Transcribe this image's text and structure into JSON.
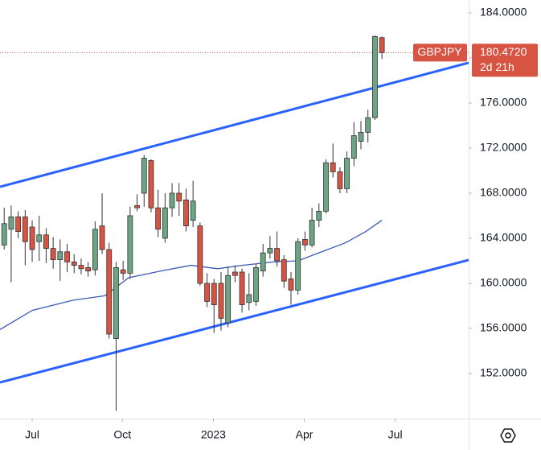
{
  "chart_data": {
    "type": "candlestick",
    "symbol": "GBPJPY",
    "countdown": "2d 21h",
    "last_price": {
      "value": 180.472,
      "label": "180.4720"
    },
    "up_color": "#6ba583",
    "down_color": "#d75442",
    "x": [
      0,
      1,
      2,
      3,
      4,
      5,
      6,
      7,
      8,
      9,
      10,
      11,
      12,
      13,
      14,
      15,
      16,
      17,
      18,
      19,
      20,
      21,
      22,
      23,
      24,
      25,
      26,
      27,
      28,
      29,
      30,
      31,
      32,
      33,
      34,
      35,
      36,
      37,
      38,
      39,
      40,
      41,
      42,
      43,
      44,
      45,
      46,
      47,
      48,
      49,
      50,
      51,
      52,
      53,
      54
    ],
    "open": [
      163.4,
      164.8,
      165.9,
      165.9,
      165.0,
      163.7,
      164.3,
      163.1,
      162.1,
      162.8,
      161.9,
      161.6,
      161.4,
      161.2,
      165.1,
      163.0,
      155.1,
      161.2,
      160.9,
      166.9,
      168.0,
      170.9,
      166.7,
      164.0,
      166.7,
      168.0,
      167.4,
      165.6,
      165.1,
      160.0,
      160.0,
      160.0,
      156.5,
      161.0,
      161.0,
      158.3,
      158.4,
      161.1,
      162.7,
      163.1,
      162.1,
      160.4,
      159.4,
      163.9,
      163.4,
      165.6,
      166.4,
      170.7,
      169.9,
      168.4,
      171.1,
      172.6,
      173.4,
      174.7,
      181.8
    ],
    "high": [
      166.7,
      166.9,
      166.4,
      166.5,
      165.6,
      166.0,
      164.9,
      164.1,
      163.9,
      163.5,
      162.6,
      162.2,
      161.9,
      165.5,
      168.0,
      163.6,
      161.9,
      162.0,
      166.8,
      167.9,
      171.4,
      171.0,
      168.3,
      168.0,
      168.9,
      168.9,
      168.4,
      169.1,
      165.4,
      160.9,
      160.4,
      161.0,
      161.5,
      161.6,
      161.3,
      160.9,
      161.7,
      163.5,
      164.2,
      164.6,
      162.5,
      161.0,
      164.0,
      164.6,
      166.7,
      167.1,
      171.0,
      172.4,
      170.3,
      171.7,
      174.3,
      174.4,
      175.4,
      182.0,
      181.9
    ],
    "low": [
      163.0,
      160.1,
      164.0,
      161.6,
      161.9,
      162.0,
      161.8,
      161.3,
      160.2,
      161.0,
      160.9,
      160.8,
      160.6,
      160.7,
      162.6,
      155.1,
      148.7,
      160.3,
      160.4,
      166.4,
      166.8,
      166.3,
      164.1,
      163.6,
      165.9,
      166.0,
      164.6,
      165.0,
      159.8,
      157.9,
      155.6,
      155.8,
      156.1,
      160.1,
      157.4,
      157.6,
      158.0,
      160.6,
      162.2,
      161.5,
      159.6,
      158.1,
      159.0,
      162.9,
      163.2,
      165.0,
      166.2,
      169.4,
      168.0,
      168.0,
      170.4,
      171.9,
      172.5,
      174.5,
      179.9
    ],
    "close": [
      165.3,
      165.9,
      164.6,
      163.7,
      163.0,
      164.3,
      163.1,
      162.1,
      162.8,
      161.9,
      161.6,
      161.3,
      161.1,
      164.8,
      163.0,
      155.5,
      161.4,
      160.9,
      166.0,
      166.7,
      171.1,
      166.7,
      164.8,
      166.7,
      168.0,
      167.3,
      165.1,
      167.3,
      160.0,
      158.4,
      158.1,
      156.9,
      160.7,
      160.7,
      158.1,
      159.0,
      161.4,
      162.7,
      163.1,
      162.0,
      160.2,
      159.4,
      163.7,
      163.4,
      165.6,
      166.4,
      170.7,
      169.9,
      168.4,
      171.1,
      173.1,
      173.4,
      174.7,
      181.9,
      180.472
    ],
    "moving_average": {
      "color": "#3a5bb5",
      "x": [
        -0.6,
        4.0,
        9.8,
        14.4,
        17.8,
        22.4,
        26.7,
        30.5,
        34.0,
        38.5,
        42.0,
        45.4,
        48.8,
        51.7,
        54.0
      ],
      "values": [
        155.9,
        157.6,
        158.5,
        158.9,
        160.5,
        161.1,
        161.6,
        161.3,
        161.6,
        161.9,
        162.0,
        162.8,
        163.6,
        164.6,
        165.6
      ]
    },
    "trendlines": [
      {
        "color": "#2962ff",
        "x": [
          -0.6,
          66.4
        ],
        "values": [
          168.57,
          179.57
        ]
      },
      {
        "color": "#2962ff",
        "x": [
          -0.6,
          66.4
        ],
        "values": [
          151.21,
          162.07
        ]
      }
    ],
    "xlim": [
      -0.6,
      66.4
    ],
    "xticks": [
      {
        "value": 4.0,
        "label": "Jul"
      },
      {
        "value": 16.9,
        "label": "Oct"
      },
      {
        "value": 29.9,
        "label": "2023"
      },
      {
        "value": 42.9,
        "label": "Apr"
      },
      {
        "value": 55.9,
        "label": "Jul"
      }
    ],
    "ylim": [
      148,
      185.14
    ],
    "yticks": [
      {
        "value": 152,
        "label": "152.0000"
      },
      {
        "value": 156,
        "label": "156.0000"
      },
      {
        "value": 160,
        "label": "160.0000"
      },
      {
        "value": 164,
        "label": "164.0000"
      },
      {
        "value": 168,
        "label": "168.0000"
      },
      {
        "value": 172,
        "label": "172.0000"
      },
      {
        "value": 176,
        "label": "176.0000"
      },
      {
        "value": 180,
        "label": "180.0000"
      },
      {
        "value": 184,
        "label": "184.0000"
      }
    ]
  }
}
